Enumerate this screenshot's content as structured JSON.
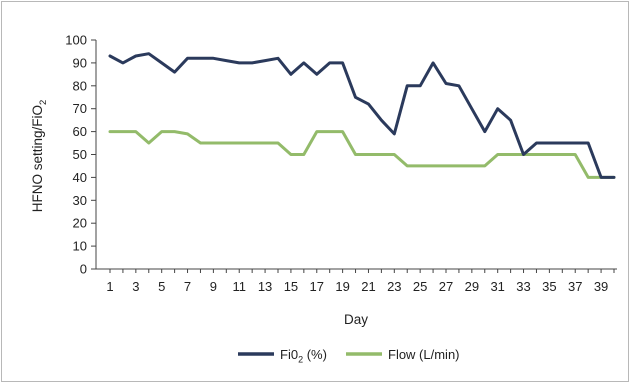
{
  "chart_data": {
    "type": "line",
    "xlabel": "Day",
    "ylabel": "HFNO setting/FiO",
    "ylabel_sub": "2",
    "ylim": [
      0,
      100
    ],
    "yticks": [
      0,
      10,
      20,
      30,
      40,
      50,
      60,
      70,
      80,
      90,
      100
    ],
    "xlim": [
      1,
      40
    ],
    "xticks": [
      1,
      3,
      5,
      7,
      9,
      11,
      13,
      15,
      17,
      19,
      21,
      23,
      25,
      27,
      29,
      31,
      33,
      35,
      37,
      39
    ],
    "grid": false,
    "legend_position": "bottom",
    "x": [
      1,
      2,
      3,
      4,
      5,
      6,
      7,
      8,
      9,
      10,
      11,
      12,
      13,
      14,
      15,
      16,
      17,
      18,
      19,
      20,
      21,
      22,
      23,
      24,
      25,
      26,
      27,
      28,
      29,
      30,
      31,
      32,
      33,
      34,
      35,
      36,
      37,
      38,
      39,
      40
    ],
    "series": [
      {
        "name": "Fi0",
        "name_sub": "2",
        "name_suffix": " (%)",
        "color": "#2b3a5c",
        "values": [
          93,
          90,
          93,
          94,
          90,
          86,
          92,
          92,
          92,
          91,
          90,
          90,
          91,
          92,
          85,
          90,
          85,
          90,
          90,
          75,
          72,
          65,
          59,
          80,
          80,
          90,
          81,
          80,
          70,
          60,
          70,
          65,
          50,
          55,
          55,
          55,
          55,
          55,
          40,
          40
        ]
      },
      {
        "name": "Flow (L/min)",
        "color": "#93bb6a",
        "values": [
          60,
          60,
          60,
          55,
          60,
          60,
          59,
          55,
          55,
          55,
          55,
          55,
          55,
          55,
          50,
          50,
          60,
          60,
          60,
          50,
          50,
          50,
          50,
          45,
          45,
          45,
          45,
          45,
          45,
          45,
          50,
          50,
          50,
          50,
          50,
          50,
          50,
          40,
          40,
          40
        ]
      }
    ]
  }
}
